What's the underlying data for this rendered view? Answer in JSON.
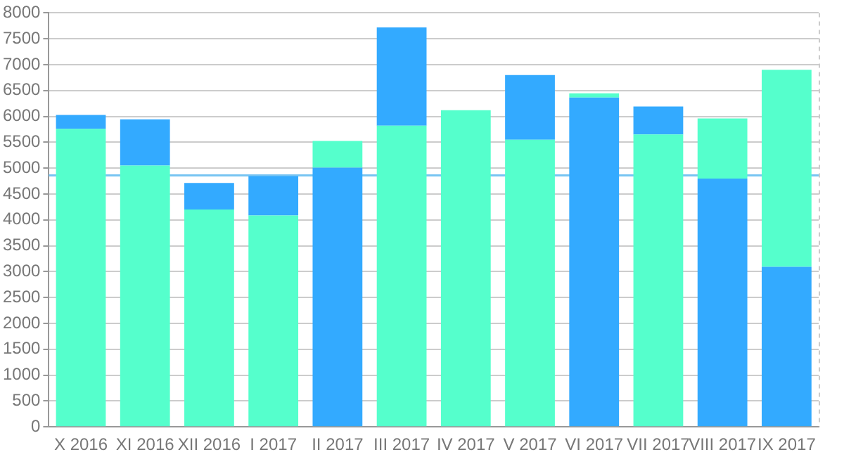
{
  "chart_data": {
    "type": "bar",
    "stacked": true,
    "categories": [
      "X 2016",
      "XI 2016",
      "XII 2016",
      "I 2017",
      "II 2017",
      "III 2017",
      "IV 2017",
      "V 2017",
      "VI 2017",
      "VII 2017",
      "VIII 2017",
      "IX 2017"
    ],
    "series": [
      {
        "colors": [
          "#55ffcc",
          "#55ffcc",
          "#55ffcc",
          "#55ffcc",
          "#33aaff",
          "#55ffcc",
          "#55ffcc",
          "#55ffcc",
          "#33aaff",
          "#55ffcc",
          "#33aaff",
          "#33aaff"
        ],
        "values": [
          5760,
          5050,
          4200,
          4085,
          5010,
          5820,
          6120,
          5550,
          6365,
          5650,
          4800,
          3095
        ]
      },
      {
        "colors": [
          "#33aaff",
          "#33aaff",
          "#33aaff",
          "#33aaff",
          "#55ffcc",
          "#33aaff",
          "#55ffcc",
          "#33aaff",
          "#55ffcc",
          "#33aaff",
          "#55ffcc",
          "#55ffcc"
        ],
        "values": [
          270,
          895,
          515,
          760,
          515,
          1900,
          null,
          1250,
          80,
          540,
          1160,
          3805
        ]
      }
    ],
    "ylim": [
      0,
      8000
    ],
    "yticks": [
      0,
      500,
      1000,
      1500,
      2000,
      2500,
      3000,
      3500,
      4000,
      4500,
      5000,
      5500,
      6000,
      6500,
      7000,
      7500,
      8000
    ],
    "grid": "y",
    "legend": false,
    "ref_lines": [
      {
        "axis": "y",
        "value": 4860,
        "color": "#77c4f2"
      }
    ]
  }
}
